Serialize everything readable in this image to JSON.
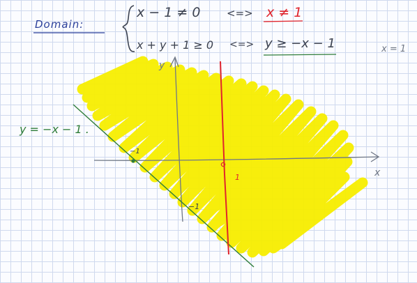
{
  "domain_label": "Domain:",
  "system": {
    "line1_lhs": "x − 1  ≠ 0",
    "line1_equiv": "<=>",
    "line1_rhs": "x ≠ 1",
    "line2_lhs": "x + y + 1 ≥ 0",
    "line2_equiv": "<=>",
    "line2_rhs": "y ≥ −x − 1"
  },
  "side_note": "x = 1",
  "line_label": "y = −x − 1 .",
  "axes": {
    "x_label": "x",
    "y_label": "y",
    "tick_x_neg1": "−1",
    "tick_y_neg1": "−1",
    "tick_x_1": "1"
  },
  "colors": {
    "ink_blue": "#2a3f9a",
    "ink_dark": "#3c4250",
    "green": "#2f7d3a",
    "red": "#e0242c",
    "highlight": "#f7ee00",
    "axis": "#6f7785"
  }
}
